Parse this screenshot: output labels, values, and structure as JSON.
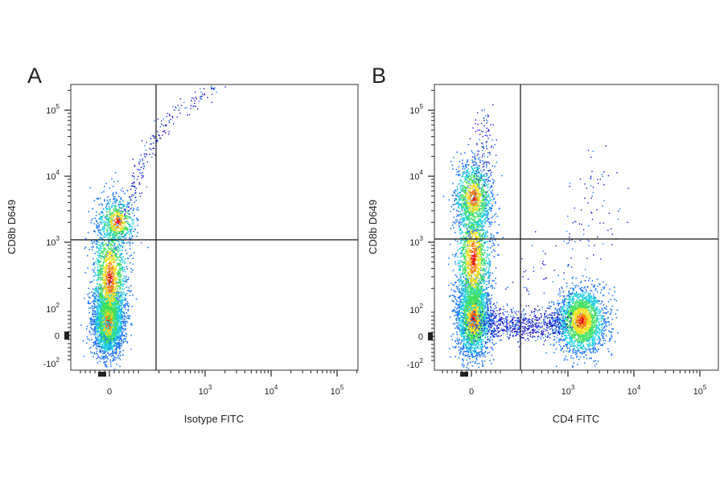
{
  "chart_data": [
    {
      "type": "scatter",
      "panel_label": "A",
      "title": "",
      "xlabel": "Isotype FITC",
      "ylabel": "CD8b D649",
      "x_scale": "biexponential",
      "y_scale": "biexponential",
      "xlim": [
        -200,
        250000
      ],
      "ylim": [
        -200,
        250000
      ],
      "x_tick_labels": [
        {
          "value": 0,
          "base": "0",
          "exp": ""
        },
        {
          "value": 1000,
          "base": "10",
          "exp": "3"
        },
        {
          "value": 10000,
          "base": "10",
          "exp": "4"
        },
        {
          "value": 100000,
          "base": "10",
          "exp": "5"
        }
      ],
      "y_tick_labels": [
        {
          "value": 100000,
          "base": "10",
          "exp": "5"
        },
        {
          "value": 10000,
          "base": "10",
          "exp": "4"
        },
        {
          "value": 1000,
          "base": "10",
          "exp": "3"
        },
        {
          "value": 100,
          "base": "10",
          "exp": "2"
        },
        {
          "value": 0,
          "base": "0",
          "exp": ""
        },
        {
          "value": -100,
          "base": "-10",
          "exp": "2"
        }
      ],
      "quadrant_gate": {
        "x": 300,
        "y": 1200
      },
      "populations": [
        {
          "name": "",
          "x_center": 0,
          "y_center": 50,
          "note": "dense double-negative population"
        },
        {
          "name": "",
          "x_center": 0,
          "y_center": 2500,
          "note": "sparse CD8b+ cells"
        }
      ],
      "grid": false,
      "legend": "none"
    },
    {
      "type": "scatter",
      "panel_label": "B",
      "title": "",
      "xlabel": "CD4 FITC",
      "ylabel": "CD8b D649",
      "x_scale": "biexponential",
      "y_scale": "biexponential",
      "xlim": [
        -200,
        250000
      ],
      "ylim": [
        -200,
        250000
      ],
      "x_tick_labels": [
        {
          "value": 0,
          "base": "0",
          "exp": ""
        },
        {
          "value": 1000,
          "base": "10",
          "exp": "3"
        },
        {
          "value": 10000,
          "base": "10",
          "exp": "4"
        },
        {
          "value": 100000,
          "base": "10",
          "exp": "5"
        }
      ],
      "y_tick_labels": [
        {
          "value": 100000,
          "base": "10",
          "exp": "5"
        },
        {
          "value": 10000,
          "base": "10",
          "exp": "4"
        },
        {
          "value": 1000,
          "base": "10",
          "exp": "3"
        },
        {
          "value": 100,
          "base": "10",
          "exp": "2"
        },
        {
          "value": 0,
          "base": "0",
          "exp": ""
        },
        {
          "value": -100,
          "base": "-10",
          "exp": "2"
        }
      ],
      "quadrant_gate": {
        "x": 300,
        "y": 1200
      },
      "populations": [
        {
          "name": "",
          "x_center": 0,
          "y_center": 50,
          "note": "double-negative population"
        },
        {
          "name": "",
          "x_center": 0,
          "y_center": 5000,
          "note": "CD8b+ CD4- population"
        },
        {
          "name": "",
          "x_center": 2000,
          "y_center": 50,
          "note": "CD4+ CD8b- population"
        }
      ],
      "grid": false,
      "legend": "none"
    }
  ]
}
